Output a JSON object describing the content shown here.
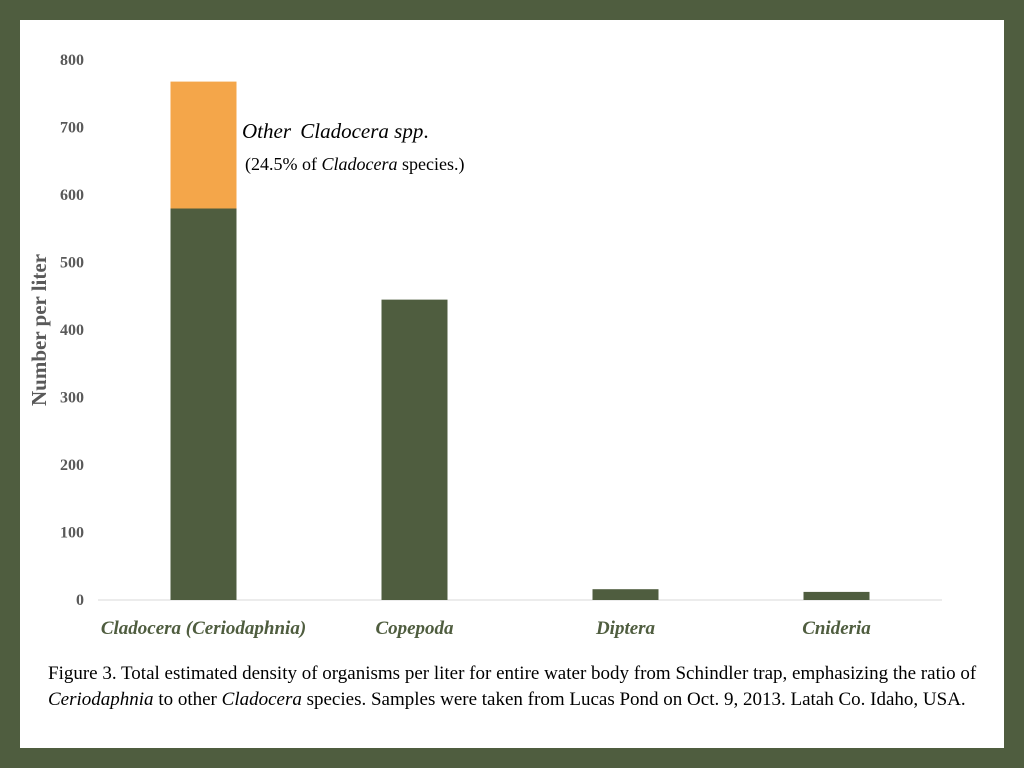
{
  "chart_data": {
    "type": "bar",
    "stacked": true,
    "categories": [
      "Cladocera (Ceriodaphnia)",
      "Copepoda",
      "Diptera",
      "Cnideria"
    ],
    "series": [
      {
        "name": "Ceriodaphnia",
        "color": "#4f5d3f",
        "values": [
          580,
          445,
          16,
          12
        ]
      },
      {
        "name": "Other Cladocera spp.",
        "color": "#f4a64a",
        "values": [
          188,
          0,
          0,
          0
        ]
      }
    ],
    "ylabel": "Number per liter",
    "xlabel": "",
    "ylim": [
      0,
      800
    ],
    "yticks": [
      0,
      100,
      200,
      300,
      400,
      500,
      600,
      700,
      800
    ],
    "ytick_labels": [
      "0",
      "100",
      "200",
      "300",
      "400",
      "500",
      "600",
      "700",
      "800"
    ],
    "annotation": {
      "word1": "Other",
      "word2": "Cladocera spp",
      "dot": ".",
      "line2_prefix": "(24.5% of ",
      "line2_italic": "Cladocera",
      "line2_suffix": " species.)"
    }
  },
  "caption": {
    "part1": "Figure 3. Total estimated density of organisms per liter for entire water body from Schindler trap, emphasizing the ratio of ",
    "italic1": "Ceriodaphnia",
    "part2": " to other ",
    "italic2": "Cladocera",
    "part3": " species. Samples were taken from Lucas Pond on Oct. 9, 2013. Latah Co. Idaho, USA."
  },
  "colors": {
    "frame": "#4f5d3f",
    "primary_bar": "#4f5d3f",
    "secondary_bar": "#f4a64a"
  }
}
